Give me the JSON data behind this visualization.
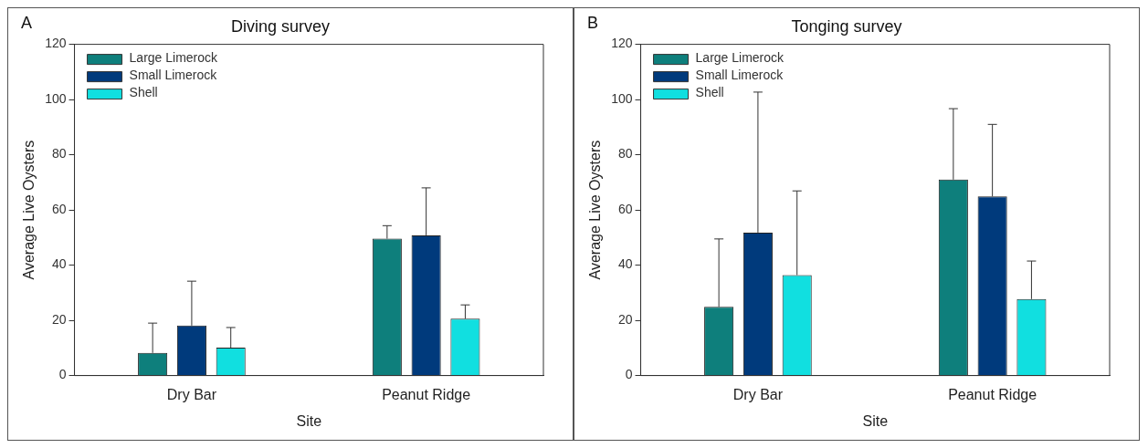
{
  "chart_data": [
    {
      "type": "bar",
      "title": "Diving survey",
      "xlabel": "Site",
      "ylabel": "Average Live Oysters",
      "annotations": [
        "A"
      ],
      "categories": [
        "Dry Bar",
        "Peanut Ridge"
      ],
      "series": [
        {
          "name": "Large Limerock",
          "color": "#0e7f7c",
          "values": [
            8.2,
            49.6
          ],
          "errors": [
            [
              8.2,
              19
            ],
            [
              49.6,
              54.3
            ]
          ]
        },
        {
          "name": "Small Limerock",
          "color": "#003a7c",
          "values": [
            18.1,
            50.8
          ],
          "errors": [
            [
              18.1,
              34.2
            ],
            [
              50.8,
              68
            ]
          ]
        },
        {
          "name": "Shell",
          "color": "#11dfe0",
          "values": [
            10.1,
            20.6
          ],
          "errors": [
            [
              10.1,
              17.4
            ],
            [
              20.6,
              25.6
            ]
          ]
        }
      ],
      "ylim": [
        0,
        120
      ],
      "yticks": [
        0,
        20,
        40,
        60,
        80,
        100,
        120
      ],
      "legend": "top left",
      "grid": false
    },
    {
      "type": "bar",
      "title": "Tonging survey",
      "xlabel": "Site",
      "ylabel": "Average Live Oysters",
      "annotations": [
        "B"
      ],
      "categories": [
        "Dry Bar",
        "Peanut Ridge"
      ],
      "series": [
        {
          "name": "Large Limerock",
          "color": "#0e7f7c",
          "values": [
            24.9,
            71
          ],
          "errors": [
            [
              24.9,
              49.5
            ],
            [
              71,
              96.7
            ]
          ]
        },
        {
          "name": "Small Limerock",
          "color": "#003a7c",
          "values": [
            51.8,
            64.9
          ],
          "errors": [
            [
              51.8,
              102.7
            ],
            [
              64.9,
              91
            ]
          ]
        },
        {
          "name": "Shell",
          "color": "#11dfe0",
          "values": [
            36.4,
            27.7
          ],
          "errors": [
            [
              36.4,
              66.9
            ],
            [
              27.7,
              41.5
            ]
          ]
        }
      ],
      "ylim": [
        0,
        120
      ],
      "yticks": [
        0,
        20,
        40,
        60,
        80,
        100,
        120
      ],
      "legend": "top left",
      "grid": false
    }
  ]
}
